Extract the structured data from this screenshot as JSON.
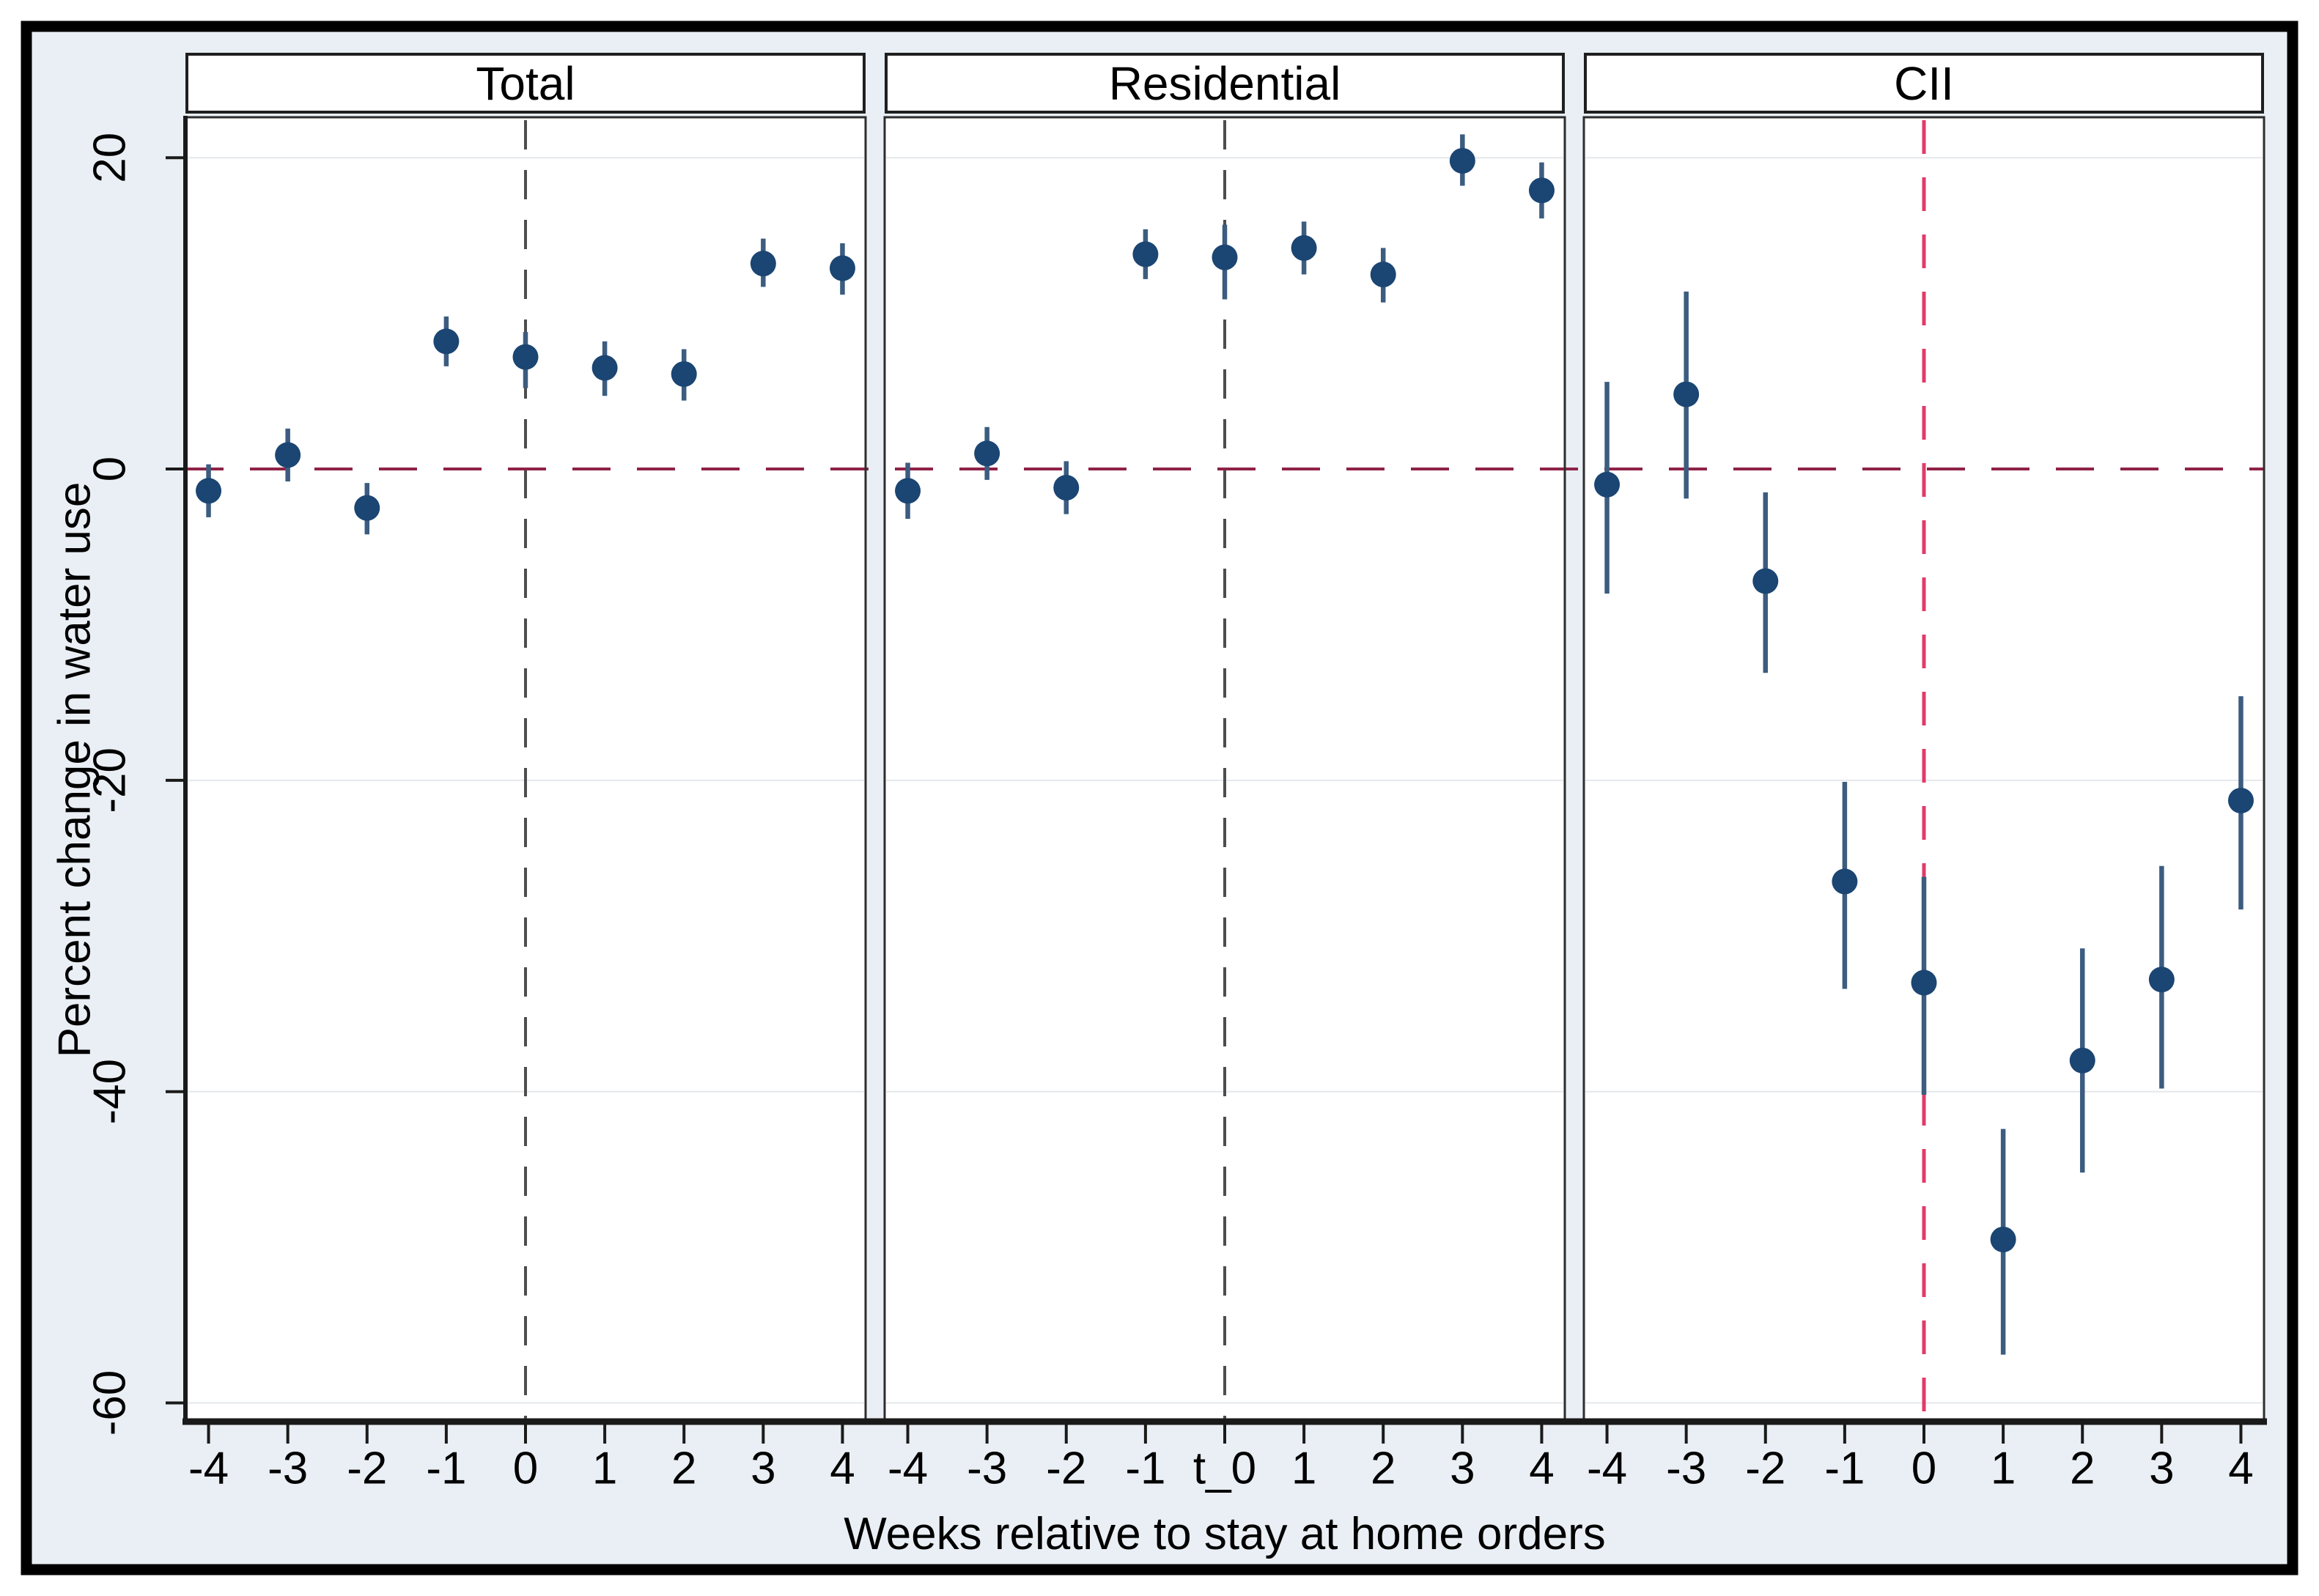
{
  "figure": {
    "y_axis_title": "Percent change in water use",
    "x_axis_title": "Weeks relative to stay at home orders"
  },
  "chart_data": {
    "type": "scatter",
    "subtype": "event-study point estimates with 95% confidence intervals, 3 panels",
    "title": "",
    "xlabel": "Weeks relative to stay at home orders",
    "ylabel": "Percent change in water use",
    "ylim": [
      -61.2,
      22.6
    ],
    "y_ticks": [
      20,
      0,
      -20,
      -40,
      -60
    ],
    "y_tick_labels": [
      "20",
      "0",
      "-20",
      "-40",
      "-60"
    ],
    "grid": "horizontal-light",
    "legend": "none",
    "reference_lines": {
      "horizontal_zero": {
        "y": 0,
        "style": "dashed",
        "color": "#8e2247"
      },
      "vertical_event_time": {
        "x": 0,
        "style": "dashed"
      }
    },
    "panels": [
      {
        "label": "Total",
        "x_tick_labels": [
          "-4",
          "-3",
          "-2",
          "-1",
          "0",
          "1",
          "2",
          "3",
          "4"
        ],
        "event_line_color": "#4d4d4d",
        "points": [
          {
            "x": -4,
            "y": -1.4,
            "ci": [
              -3.1,
              0.3
            ]
          },
          {
            "x": -3,
            "y": 0.9,
            "ci": [
              -0.8,
              2.6
            ]
          },
          {
            "x": -2,
            "y": -2.5,
            "ci": [
              -4.2,
              -0.9
            ]
          },
          {
            "x": -1,
            "y": 8.2,
            "ci": [
              6.6,
              9.8
            ]
          },
          {
            "x": 0,
            "y": 7.2,
            "ci": [
              5.2,
              8.8
            ]
          },
          {
            "x": 1,
            "y": 6.5,
            "ci": [
              4.7,
              8.2
            ]
          },
          {
            "x": 2,
            "y": 6.1,
            "ci": [
              4.4,
              7.7
            ]
          },
          {
            "x": 3,
            "y": 13.2,
            "ci": [
              11.7,
              14.8
            ]
          },
          {
            "x": 4,
            "y": 12.9,
            "ci": [
              11.2,
              14.5
            ]
          }
        ]
      },
      {
        "label": "Residential",
        "x_tick_labels": [
          "-4",
          "-3",
          "-2",
          "-1",
          "t_0",
          "1",
          "2",
          "3",
          "4"
        ],
        "event_line_color": "#4d4d4d",
        "points": [
          {
            "x": -4,
            "y": -1.4,
            "ci": [
              -3.2,
              0.4
            ]
          },
          {
            "x": -3,
            "y": 1.0,
            "ci": [
              -0.7,
              2.7
            ]
          },
          {
            "x": -2,
            "y": -1.2,
            "ci": [
              -2.9,
              0.5
            ]
          },
          {
            "x": -1,
            "y": 13.8,
            "ci": [
              12.2,
              15.4
            ]
          },
          {
            "x": 0,
            "y": 13.6,
            "ci": [
              10.9,
              15.7
            ]
          },
          {
            "x": 1,
            "y": 14.2,
            "ci": [
              12.5,
              15.9
            ]
          },
          {
            "x": 2,
            "y": 12.5,
            "ci": [
              10.7,
              14.2
            ]
          },
          {
            "x": 3,
            "y": 19.8,
            "ci": [
              18.2,
              21.5
            ]
          },
          {
            "x": 4,
            "y": 17.9,
            "ci": [
              16.1,
              19.7
            ]
          }
        ]
      },
      {
        "label": "CII",
        "x_tick_labels": [
          "-4",
          "-3",
          "-2",
          "-1",
          "0",
          "1",
          "2",
          "3",
          "4"
        ],
        "event_line_color": "#e23a69",
        "points": [
          {
            "x": -4,
            "y": -1.0,
            "ci": [
              -8.0,
              5.6
            ]
          },
          {
            "x": -3,
            "y": 4.8,
            "ci": [
              -1.9,
              11.4
            ]
          },
          {
            "x": -2,
            "y": -7.2,
            "ci": [
              -13.1,
              -1.5
            ]
          },
          {
            "x": -1,
            "y": -26.5,
            "ci": [
              -33.4,
              -20.1
            ]
          },
          {
            "x": 0,
            "y": -33.0,
            "ci": [
              -40.2,
              -26.2
            ]
          },
          {
            "x": 1,
            "y": -49.5,
            "ci": [
              -56.9,
              -42.4
            ]
          },
          {
            "x": 2,
            "y": -38.0,
            "ci": [
              -45.2,
              -30.8
            ]
          },
          {
            "x": 3,
            "y": -32.8,
            "ci": [
              -39.8,
              -25.5
            ]
          },
          {
            "x": 4,
            "y": -21.3,
            "ci": [
              -28.3,
              -14.6
            ]
          }
        ]
      }
    ],
    "colors": {
      "background": "#e9eff4",
      "plot_background": "#ffffff",
      "marker": "#1b4572",
      "ci_bar": "#3c5c80",
      "zero_line": "#8e2247",
      "event_line_pink": "#e23a69",
      "event_line_gray": "#4d4d4d",
      "gridline": "#e4e8eb",
      "panel_frame": "#2d2d2d",
      "axis": "#1a1a1a",
      "text": "#000000"
    }
  }
}
